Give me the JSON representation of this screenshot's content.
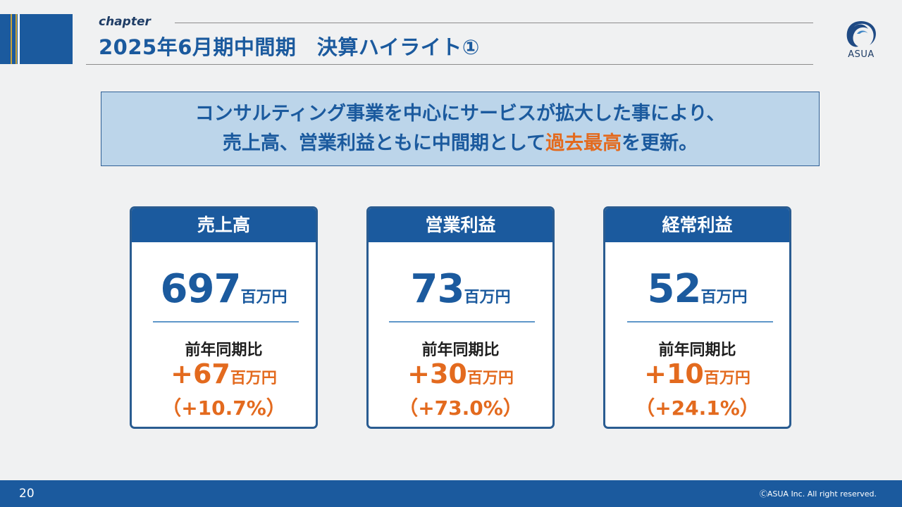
{
  "header": {
    "chapter_label": "chapter",
    "title": "2025年6月期中間期　決算ハイライト①",
    "logo_text": "ASUA"
  },
  "summary": {
    "line1": "コンサルティング事業を中心にサービスが拡大した事により、",
    "line2_before": "売上高、営業利益ともに中間期として",
    "line2_highlight": "過去最高",
    "line2_after": "を更新。"
  },
  "cards": [
    {
      "title": "売上高",
      "value": "697",
      "unit": "百万円",
      "yoy_label": "前年同期比",
      "yoy_value": "+67",
      "yoy_unit": "百万円",
      "yoy_pct": "（+10.7%）"
    },
    {
      "title": "営業利益",
      "value": "73",
      "unit": "百万円",
      "yoy_label": "前年同期比",
      "yoy_value": "+30",
      "yoy_unit": "百万円",
      "yoy_pct": "（+73.0%）"
    },
    {
      "title": "経常利益",
      "value": "52",
      "unit": "百万円",
      "yoy_label": "前年同期比",
      "yoy_value": "+10",
      "yoy_unit": "百万円",
      "yoy_pct": "（+24.1%）"
    }
  ],
  "footer": {
    "page_number": "20",
    "copyright": "ⒸASUA Inc. All right reserved."
  },
  "colors": {
    "brand_blue": "#1b5a9e",
    "highlight_orange": "#e36a1e",
    "summary_bg": "#bcd5ea",
    "accent_gold": "#c9a43a"
  }
}
